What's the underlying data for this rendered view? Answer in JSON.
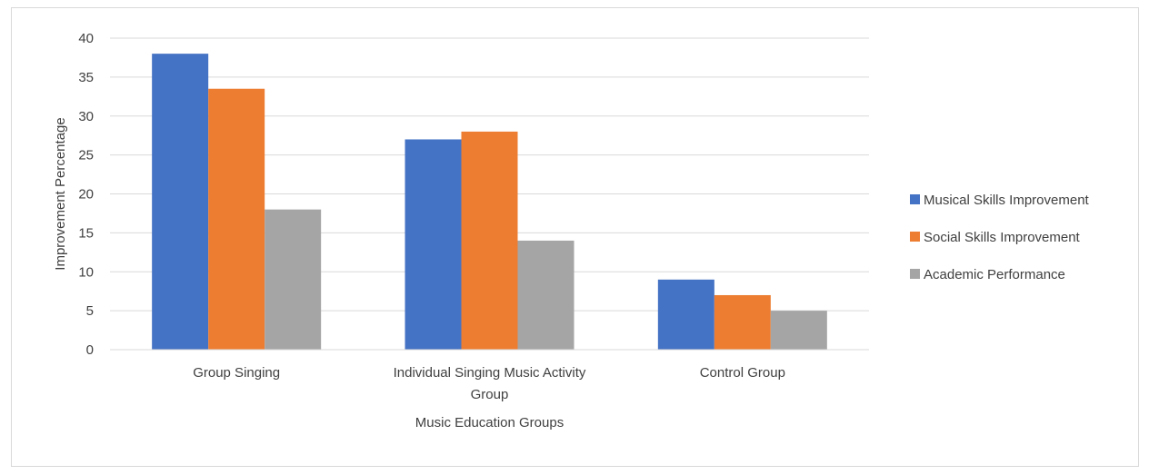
{
  "chart_data": {
    "type": "bar",
    "categories": [
      "Group Singing",
      "Individual Singing Music Activity Group",
      "Control Group"
    ],
    "category_label_lines": [
      [
        "Group Singing"
      ],
      [
        "Individual Singing Music Activity",
        "Group"
      ],
      [
        "Control Group"
      ]
    ],
    "series": [
      {
        "name": "Musical Skills Improvement",
        "color": "#4472C4",
        "values": [
          38,
          27,
          9
        ]
      },
      {
        "name": "Social Skills Improvement",
        "color": "#ED7D31",
        "values": [
          33.5,
          28,
          7
        ]
      },
      {
        "name": "Academic Performance",
        "color": "#A5A5A5",
        "values": [
          18,
          14,
          5
        ]
      }
    ],
    "xlabel": "Music Education Groups",
    "ylabel": "Improvement Percentage",
    "ylim": [
      0,
      40
    ],
    "yticks": [
      0,
      5,
      10,
      15,
      20,
      25,
      30,
      35,
      40
    ],
    "grid": true,
    "legend": "right"
  }
}
